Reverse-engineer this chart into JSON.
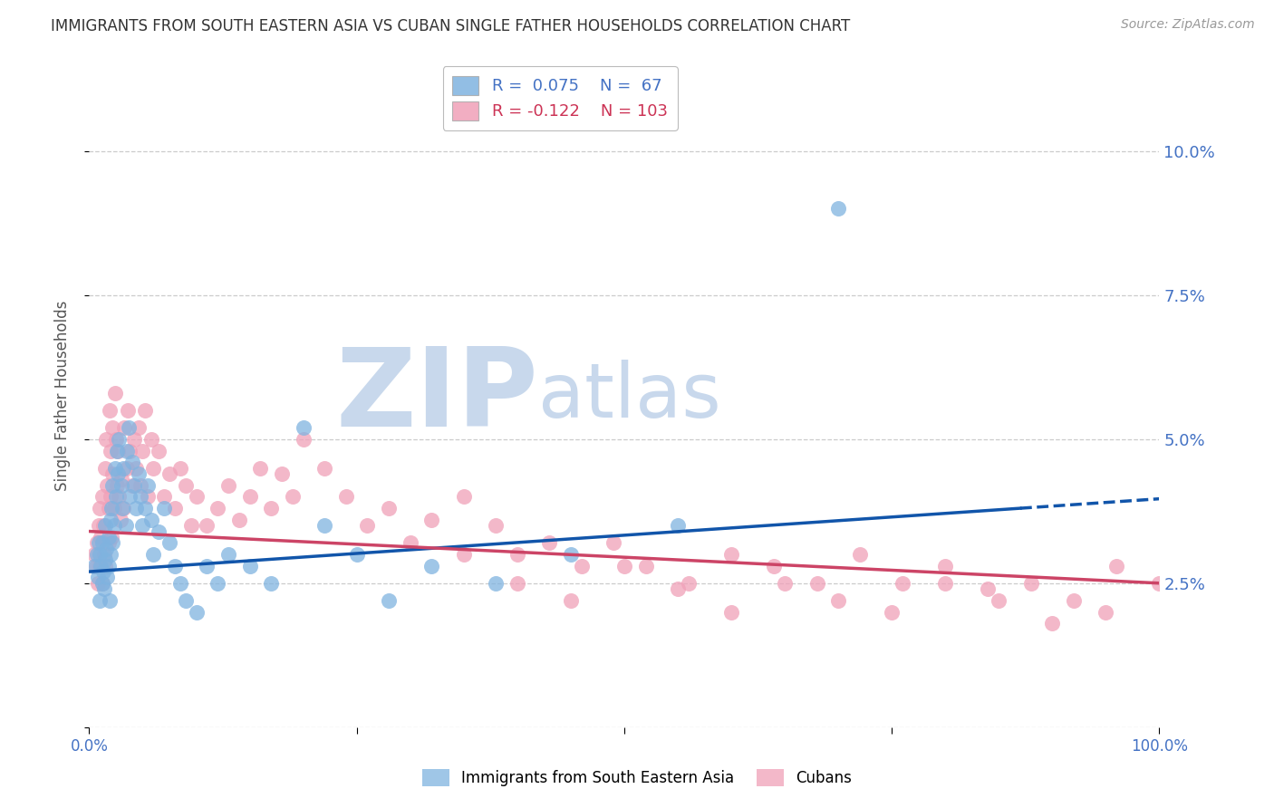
{
  "title": "IMMIGRANTS FROM SOUTH EASTERN ASIA VS CUBAN SINGLE FATHER HOUSEHOLDS CORRELATION CHART",
  "source": "Source: ZipAtlas.com",
  "ylabel": "Single Father Households",
  "yticks": [
    0.0,
    0.025,
    0.05,
    0.075,
    0.1
  ],
  "ytick_labels": [
    "",
    "2.5%",
    "5.0%",
    "7.5%",
    "10.0%"
  ],
  "xlim": [
    0.0,
    1.0
  ],
  "ylim": [
    0.0,
    0.115
  ],
  "watermark_zip": "ZIP",
  "watermark_atlas": "atlas",
  "legend_entries": [
    {
      "label": "Immigrants from South Eastern Asia",
      "color": "#6fa8dc",
      "R": 0.075,
      "N": 67
    },
    {
      "label": "Cubans",
      "color": "#ea9999",
      "R": -0.122,
      "N": 103
    }
  ],
  "blue_scatter_x": [
    0.005,
    0.007,
    0.008,
    0.009,
    0.01,
    0.01,
    0.011,
    0.012,
    0.012,
    0.013,
    0.014,
    0.015,
    0.015,
    0.016,
    0.017,
    0.018,
    0.018,
    0.019,
    0.02,
    0.02,
    0.021,
    0.022,
    0.022,
    0.023,
    0.024,
    0.025,
    0.026,
    0.027,
    0.028,
    0.03,
    0.031,
    0.032,
    0.034,
    0.035,
    0.037,
    0.038,
    0.04,
    0.042,
    0.044,
    0.046,
    0.048,
    0.05,
    0.052,
    0.055,
    0.058,
    0.06,
    0.065,
    0.07,
    0.075,
    0.08,
    0.085,
    0.09,
    0.1,
    0.11,
    0.12,
    0.13,
    0.15,
    0.17,
    0.2,
    0.22,
    0.25,
    0.28,
    0.32,
    0.38,
    0.45,
    0.55,
    0.7
  ],
  "blue_scatter_y": [
    0.028,
    0.03,
    0.026,
    0.032,
    0.022,
    0.03,
    0.028,
    0.025,
    0.032,
    0.027,
    0.024,
    0.029,
    0.035,
    0.031,
    0.026,
    0.033,
    0.028,
    0.022,
    0.03,
    0.036,
    0.038,
    0.032,
    0.042,
    0.035,
    0.045,
    0.04,
    0.048,
    0.044,
    0.05,
    0.042,
    0.038,
    0.045,
    0.035,
    0.048,
    0.052,
    0.04,
    0.046,
    0.042,
    0.038,
    0.044,
    0.04,
    0.035,
    0.038,
    0.042,
    0.036,
    0.03,
    0.034,
    0.038,
    0.032,
    0.028,
    0.025,
    0.022,
    0.02,
    0.028,
    0.025,
    0.03,
    0.028,
    0.025,
    0.052,
    0.035,
    0.03,
    0.022,
    0.028,
    0.025,
    0.03,
    0.035,
    0.09
  ],
  "pink_scatter_x": [
    0.005,
    0.006,
    0.007,
    0.008,
    0.009,
    0.01,
    0.01,
    0.011,
    0.012,
    0.012,
    0.013,
    0.014,
    0.015,
    0.015,
    0.016,
    0.017,
    0.018,
    0.018,
    0.019,
    0.02,
    0.02,
    0.021,
    0.022,
    0.022,
    0.023,
    0.024,
    0.025,
    0.026,
    0.027,
    0.028,
    0.029,
    0.03,
    0.032,
    0.033,
    0.035,
    0.036,
    0.038,
    0.04,
    0.042,
    0.044,
    0.046,
    0.048,
    0.05,
    0.052,
    0.055,
    0.058,
    0.06,
    0.065,
    0.07,
    0.075,
    0.08,
    0.085,
    0.09,
    0.095,
    0.1,
    0.11,
    0.12,
    0.13,
    0.14,
    0.15,
    0.16,
    0.17,
    0.18,
    0.19,
    0.2,
    0.22,
    0.24,
    0.26,
    0.28,
    0.3,
    0.32,
    0.35,
    0.38,
    0.4,
    0.43,
    0.46,
    0.49,
    0.52,
    0.56,
    0.6,
    0.64,
    0.68,
    0.72,
    0.76,
    0.8,
    0.84,
    0.88,
    0.92,
    0.96,
    1.0,
    0.35,
    0.4,
    0.45,
    0.5,
    0.55,
    0.6,
    0.65,
    0.7,
    0.75,
    0.8,
    0.85,
    0.9,
    0.95
  ],
  "pink_scatter_y": [
    0.03,
    0.028,
    0.032,
    0.025,
    0.035,
    0.028,
    0.038,
    0.033,
    0.025,
    0.04,
    0.035,
    0.03,
    0.028,
    0.045,
    0.05,
    0.042,
    0.038,
    0.032,
    0.055,
    0.048,
    0.04,
    0.033,
    0.052,
    0.044,
    0.038,
    0.058,
    0.05,
    0.042,
    0.048,
    0.04,
    0.036,
    0.043,
    0.038,
    0.052,
    0.045,
    0.055,
    0.048,
    0.042,
    0.05,
    0.045,
    0.052,
    0.042,
    0.048,
    0.055,
    0.04,
    0.05,
    0.045,
    0.048,
    0.04,
    0.044,
    0.038,
    0.045,
    0.042,
    0.035,
    0.04,
    0.035,
    0.038,
    0.042,
    0.036,
    0.04,
    0.045,
    0.038,
    0.044,
    0.04,
    0.05,
    0.045,
    0.04,
    0.035,
    0.038,
    0.032,
    0.036,
    0.04,
    0.035,
    0.03,
    0.032,
    0.028,
    0.032,
    0.028,
    0.025,
    0.03,
    0.028,
    0.025,
    0.03,
    0.025,
    0.028,
    0.024,
    0.025,
    0.022,
    0.028,
    0.025,
    0.03,
    0.025,
    0.022,
    0.028,
    0.024,
    0.02,
    0.025,
    0.022,
    0.02,
    0.025,
    0.022,
    0.018,
    0.02
  ],
  "blue_line_color": "#1155aa",
  "pink_line_color": "#cc4466",
  "blue_scatter_color": "#7fb3e0",
  "pink_scatter_color": "#f0a0b8",
  "grid_color": "#cccccc",
  "title_fontsize": 12,
  "axis_label_color": "#4472c4",
  "watermark_color": "#c8d8ec",
  "background_color": "#ffffff"
}
